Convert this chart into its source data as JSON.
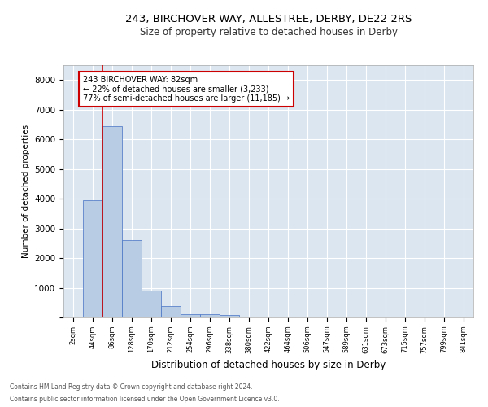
{
  "title1": "243, BIRCHOVER WAY, ALLESTREE, DERBY, DE22 2RS",
  "title2": "Size of property relative to detached houses in Derby",
  "xlabel": "Distribution of detached houses by size in Derby",
  "ylabel": "Number of detached properties",
  "footnote1": "Contains HM Land Registry data © Crown copyright and database right 2024.",
  "footnote2": "Contains public sector information licensed under the Open Government Licence v3.0.",
  "categories": [
    "2sqm",
    "44sqm",
    "86sqm",
    "128sqm",
    "170sqm",
    "212sqm",
    "254sqm",
    "296sqm",
    "338sqm",
    "380sqm",
    "422sqm",
    "464sqm",
    "506sqm",
    "547sqm",
    "589sqm",
    "631sqm",
    "673sqm",
    "715sqm",
    "757sqm",
    "799sqm",
    "841sqm"
  ],
  "bar_values": [
    30,
    3950,
    6450,
    2600,
    900,
    380,
    120,
    100,
    70,
    0,
    0,
    0,
    0,
    0,
    0,
    0,
    0,
    0,
    0,
    0,
    0
  ],
  "bar_color": "#b8cce4",
  "bar_edge_color": "#4472c4",
  "background_color": "#dce6f1",
  "grid_color": "#ffffff",
  "annotation_line1": "243 BIRCHOVER WAY: 82sqm",
  "annotation_line2": "← 22% of detached houses are smaller (3,233)",
  "annotation_line3": "77% of semi-detached houses are larger (11,185) →",
  "annotation_box_color": "#ffffff",
  "annotation_box_edge": "#cc0000",
  "vline_color": "#cc0000",
  "ylim": [
    0,
    8500
  ],
  "yticks": [
    0,
    1000,
    2000,
    3000,
    4000,
    5000,
    6000,
    7000,
    8000
  ]
}
